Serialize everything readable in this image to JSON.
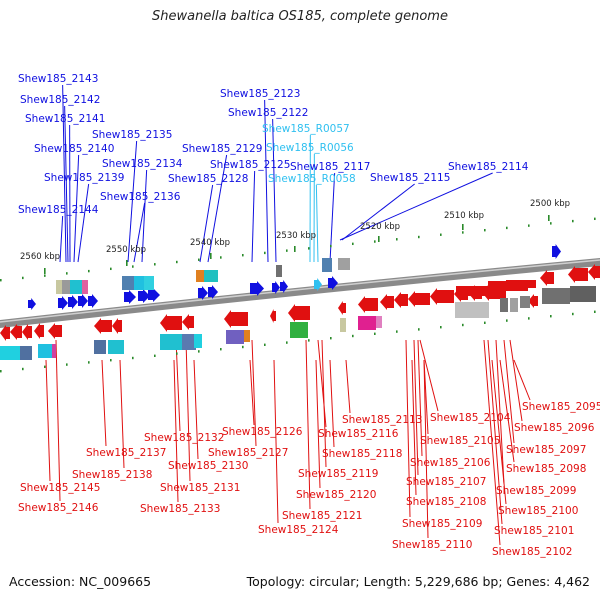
{
  "title": "Shewanella baltica OS185, complete genome",
  "accession": "Accession: NC_009665",
  "topology": "Topology: circular; Length: 5,229,686 bp; Genes: 4,462",
  "scale_labels": [
    "2560 kbp",
    "2550 kbp",
    "2540 kbp",
    "2530 kbp",
    "2520 kbp",
    "2510 kbp",
    "2500 kbp"
  ],
  "top_genes": [
    "Shew185_2143",
    "Shew185_2142",
    "Shew185_2141",
    "Shew185_2140",
    "Shew185_2139",
    "Shew185_2144",
    "Shew185_2135",
    "Shew185_2134",
    "Shew185_2136",
    "Shew185_2129",
    "Shew185_2128",
    "Shew185_2123",
    "Shew185_2122",
    "Shew185_R0057",
    "Shew185_R0056",
    "Shew185_2125",
    "Shew185_2117",
    "Shew185_R0058",
    "Shew185_2115",
    "Shew185_2114"
  ],
  "bottom_genes": [
    "Shew185_2113",
    "Shew185_2104",
    "Shew185_2095",
    "Shew185_2116",
    "Shew185_2105",
    "Shew185_2096",
    "Shew185_2126",
    "Shew185_2132",
    "Shew185_2137",
    "Shew185_2127",
    "Shew185_2118",
    "Shew185_2097",
    "Shew185_2130",
    "Shew185_2106",
    "Shew185_2138",
    "Shew185_2119",
    "Shew185_2098",
    "Shew185_2107",
    "Shew185_2145",
    "Shew185_2131",
    "Shew185_2120",
    "Shew185_2099",
    "Shew185_2108",
    "Shew185_2146",
    "Shew185_2133",
    "Shew185_2121",
    "Shew185_2100",
    "Shew185_2109",
    "Shew185_2124",
    "Shew185_2101",
    "Shew185_2110",
    "Shew185_2102"
  ],
  "colors": {
    "forward_strand": "#1010e0",
    "reverse_strand": "#e01010",
    "rna_gene": "#30c0f0",
    "backbone": "#7a7a7a",
    "tick": "#2a8a2a"
  }
}
